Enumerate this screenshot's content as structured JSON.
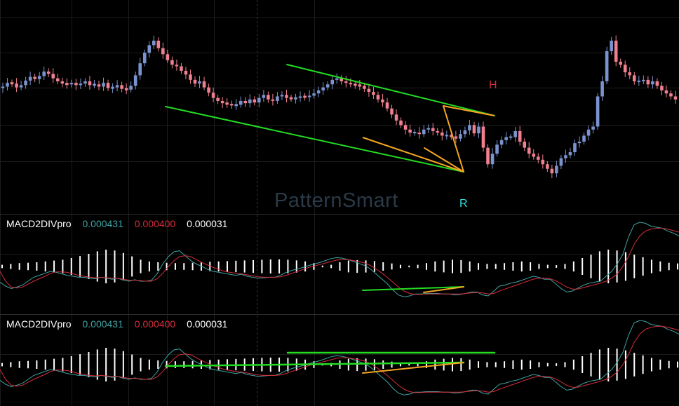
{
  "watermark": "PatternSmart",
  "markers": {
    "h": "H",
    "r": "R"
  },
  "colors": {
    "background": "#000000",
    "bull_candle": "#7a93cf",
    "bear_candle": "#f07f8f",
    "channel_line": "#22dd22",
    "zigzag_line": "#f5a623",
    "macd_line": "#3fa3a3",
    "signal_line": "#d62d3a",
    "histogram": "#ffffff",
    "h_marker": "#d62d3a",
    "r_marker": "#33dddd",
    "watermark": "#2a3a48"
  },
  "indicators": [
    {
      "name": "MACD2DIVpro",
      "macd": "0.000431",
      "signal": "0.000400",
      "hist": "0.000031"
    },
    {
      "name": "MACD2DIVpro",
      "macd": "0.000431",
      "signal": "0.000400",
      "hist": "0.000031"
    }
  ],
  "chart_data": [
    {
      "type": "candlestick",
      "title": "",
      "grid": true,
      "closes": [
        0.565,
        0.59,
        0.585,
        0.56,
        0.575,
        0.605,
        0.63,
        0.615,
        0.635,
        0.665,
        0.65,
        0.62,
        0.6,
        0.585,
        0.58,
        0.59,
        0.575,
        0.585,
        0.6,
        0.575,
        0.58,
        0.565,
        0.59,
        0.555,
        0.56,
        0.575,
        0.55,
        0.545,
        0.57,
        0.64,
        0.72,
        0.79,
        0.84,
        0.87,
        0.82,
        0.78,
        0.74,
        0.71,
        0.7,
        0.67,
        0.645,
        0.61,
        0.585,
        0.6,
        0.56,
        0.525,
        0.49,
        0.47,
        0.455,
        0.45,
        0.44,
        0.445,
        0.47,
        0.455,
        0.48,
        0.46,
        0.49,
        0.51,
        0.48,
        0.47,
        0.5,
        0.51,
        0.49,
        0.485,
        0.49,
        0.5,
        0.495,
        0.505,
        0.52,
        0.54,
        0.56,
        0.58,
        0.61,
        0.62,
        0.6,
        0.59,
        0.58,
        0.575,
        0.57,
        0.55,
        0.53,
        0.51,
        0.48,
        0.46,
        0.42,
        0.38,
        0.34,
        0.31,
        0.28,
        0.26,
        0.26,
        0.25,
        0.28,
        0.29,
        0.27,
        0.26,
        0.24,
        0.24,
        0.235,
        0.22,
        0.25,
        0.275,
        0.31,
        0.255,
        0.3,
        0.16,
        0.05,
        0.12,
        0.18,
        0.21,
        0.23,
        0.23,
        0.27,
        0.2,
        0.16,
        0.12,
        0.1,
        0.08,
        0.05,
        0.02,
        -0.01,
        0.04,
        0.09,
        0.11,
        0.13,
        0.19,
        0.2,
        0.24,
        0.28,
        0.3,
        0.5,
        0.6,
        0.8,
        0.87,
        0.73,
        0.71,
        0.66,
        0.64,
        0.6,
        0.6,
        0.61,
        0.58,
        0.6,
        0.57,
        0.54,
        0.52,
        0.5,
        0.48
      ]
    },
    {
      "type": "line",
      "title": "MACD2DIVpro",
      "series": [
        {
          "name": "0.000431",
          "values": [
            -0.32,
            -0.4,
            -0.45,
            -0.42,
            -0.38,
            -0.3,
            -0.22,
            -0.18,
            -0.14,
            -0.1,
            -0.12,
            -0.15,
            -0.18,
            -0.2,
            -0.22,
            -0.22,
            -0.24,
            -0.25,
            -0.22,
            -0.24,
            -0.26,
            -0.24,
            -0.28,
            -0.3,
            -0.27,
            -0.3,
            -0.3,
            -0.28,
            -0.15,
            0.05,
            0.2,
            0.3,
            0.32,
            0.22,
            0.12,
            0.05,
            0.0,
            -0.06,
            -0.1,
            -0.12,
            -0.14,
            -0.16,
            -0.18,
            -0.16,
            -0.2,
            -0.22,
            -0.24,
            -0.23,
            -0.22,
            -0.22,
            -0.18,
            -0.12,
            -0.08,
            -0.05,
            -0.02,
            0.02,
            0.05,
            0.08,
            0.12,
            0.16,
            0.18,
            0.17,
            0.14,
            0.1,
            0.06,
            0.02,
            -0.05,
            -0.15,
            -0.25,
            -0.35,
            -0.48,
            -0.58,
            -0.62,
            -0.6,
            -0.56,
            -0.56,
            -0.55,
            -0.55,
            -0.55,
            -0.56,
            -0.56,
            -0.58,
            -0.57,
            -0.55,
            -0.52,
            -0.52,
            -0.58,
            -0.6,
            -0.5,
            -0.4,
            -0.38,
            -0.34,
            -0.32,
            -0.28,
            -0.24,
            -0.2,
            -0.22,
            -0.26,
            -0.26,
            -0.35,
            -0.45,
            -0.52,
            -0.5,
            -0.44,
            -0.38,
            -0.34,
            -0.32,
            -0.3,
            -0.2,
            -0.1,
            0.05,
            0.25,
            0.6,
            0.85,
            0.9,
            0.88,
            0.82,
            0.8,
            0.78,
            0.72,
            0.68,
            0.62
          ]
        },
        {
          "name": "0.000400",
          "values": [
            -0.1,
            -0.3,
            -0.42,
            -0.44,
            -0.42,
            -0.36,
            -0.3,
            -0.25,
            -0.2,
            -0.14,
            -0.11,
            -0.11,
            -0.12,
            -0.15,
            -0.18,
            -0.2,
            -0.22,
            -0.23,
            -0.22,
            -0.23,
            -0.24,
            -0.24,
            -0.26,
            -0.28,
            -0.28,
            -0.29,
            -0.3,
            -0.3,
            -0.25,
            -0.14,
            0.0,
            0.12,
            0.2,
            0.22,
            0.2,
            0.14,
            0.08,
            0.03,
            -0.02,
            -0.06,
            -0.1,
            -0.12,
            -0.14,
            -0.15,
            -0.17,
            -0.19,
            -0.21,
            -0.22,
            -0.22,
            -0.22,
            -0.21,
            -0.18,
            -0.14,
            -0.1,
            -0.06,
            -0.02,
            0.01,
            0.04,
            0.07,
            0.1,
            0.13,
            0.14,
            0.14,
            0.12,
            0.1,
            0.07,
            0.02,
            -0.05,
            -0.13,
            -0.22,
            -0.32,
            -0.42,
            -0.5,
            -0.55,
            -0.57,
            -0.57,
            -0.56,
            -0.56,
            -0.56,
            -0.56,
            -0.56,
            -0.56,
            -0.56,
            -0.55,
            -0.54,
            -0.53,
            -0.54,
            -0.56,
            -0.55,
            -0.5,
            -0.46,
            -0.42,
            -0.38,
            -0.34,
            -0.3,
            -0.26,
            -0.24,
            -0.24,
            -0.25,
            -0.29,
            -0.35,
            -0.42,
            -0.46,
            -0.46,
            -0.43,
            -0.4,
            -0.37,
            -0.34,
            -0.3,
            -0.24,
            -0.15,
            0.0,
            0.2,
            0.45,
            0.62,
            0.72,
            0.76,
            0.78,
            0.78,
            0.76,
            0.73,
            0.7
          ]
        }
      ],
      "histogram": [
        0.1,
        0.15,
        0.2,
        0.22,
        0.25,
        0.3,
        0.35,
        0.4,
        0.5,
        0.62,
        0.75,
        0.9,
        1.0,
        0.95,
        0.8,
        0.6,
        0.4,
        0.3,
        0.25,
        0.22,
        0.2,
        0.2,
        0.22,
        0.25,
        0.28,
        0.3,
        0.32,
        0.34,
        0.36,
        0.38,
        0.4,
        0.42,
        0.42,
        0.4,
        0.36,
        0.3,
        0.2,
        0.05,
        -0.1,
        -0.25,
        -0.35,
        -0.38,
        -0.36,
        -0.32,
        -0.25,
        -0.18,
        -0.1,
        0.0,
        0.1,
        0.2,
        0.3,
        0.35,
        0.4,
        0.38,
        0.3,
        0.2,
        0.15,
        0.15,
        0.2,
        0.25,
        0.3,
        0.25,
        0.15,
        0.1,
        0.08,
        0.15,
        0.3,
        0.5,
        0.7,
        0.9,
        1.0,
        0.95,
        0.85,
        0.7,
        0.55,
        0.4,
        0.3,
        0.22,
        0.18
      ],
      "ylim": [
        -1,
        1
      ]
    },
    {
      "type": "line",
      "title": "MACD2DIVpro",
      "series": [
        {
          "name": "0.000431",
          "values": [
            -0.32,
            -0.4,
            -0.45,
            -0.42,
            -0.38,
            -0.3,
            -0.22,
            -0.18,
            -0.14,
            -0.1,
            -0.12,
            -0.15,
            -0.18,
            -0.2,
            -0.22,
            -0.22,
            -0.24,
            -0.25,
            -0.22,
            -0.24,
            -0.26,
            -0.24,
            -0.28,
            -0.3,
            -0.27,
            -0.3,
            -0.3,
            -0.28,
            -0.15,
            0.05,
            0.2,
            0.3,
            0.32,
            0.22,
            0.12,
            0.05,
            0.0,
            -0.06,
            -0.1,
            -0.12,
            -0.14,
            -0.16,
            -0.18,
            -0.16,
            -0.2,
            -0.22,
            -0.24,
            -0.23,
            -0.22,
            -0.22,
            -0.18,
            -0.12,
            -0.08,
            -0.05,
            -0.02,
            0.02,
            0.05,
            0.08,
            0.12,
            0.16,
            0.18,
            0.17,
            0.14,
            0.1,
            0.06,
            0.02,
            -0.05,
            -0.15,
            -0.25,
            -0.35,
            -0.48,
            -0.58,
            -0.62,
            -0.6,
            -0.56,
            -0.56,
            -0.55,
            -0.55,
            -0.55,
            -0.56,
            -0.56,
            -0.58,
            -0.57,
            -0.55,
            -0.52,
            -0.52,
            -0.58,
            -0.6,
            -0.5,
            -0.4,
            -0.38,
            -0.34,
            -0.32,
            -0.28,
            -0.24,
            -0.2,
            -0.22,
            -0.26,
            -0.26,
            -0.35,
            -0.45,
            -0.52,
            -0.5,
            -0.44,
            -0.38,
            -0.34,
            -0.32,
            -0.3,
            -0.2,
            -0.1,
            0.05,
            0.25,
            0.6,
            0.85,
            0.9,
            0.88,
            0.82,
            0.8,
            0.78,
            0.72,
            0.68,
            0.62
          ]
        },
        {
          "name": "0.000400",
          "values": [
            -0.1,
            -0.3,
            -0.42,
            -0.44,
            -0.42,
            -0.36,
            -0.3,
            -0.25,
            -0.2,
            -0.14,
            -0.11,
            -0.11,
            -0.12,
            -0.15,
            -0.18,
            -0.2,
            -0.22,
            -0.23,
            -0.22,
            -0.23,
            -0.24,
            -0.24,
            -0.26,
            -0.28,
            -0.28,
            -0.29,
            -0.3,
            -0.3,
            -0.25,
            -0.14,
            0.0,
            0.12,
            0.2,
            0.22,
            0.2,
            0.14,
            0.08,
            0.03,
            -0.02,
            -0.06,
            -0.1,
            -0.12,
            -0.14,
            -0.15,
            -0.17,
            -0.19,
            -0.21,
            -0.22,
            -0.22,
            -0.22,
            -0.21,
            -0.18,
            -0.14,
            -0.1,
            -0.06,
            -0.02,
            0.01,
            0.04,
            0.07,
            0.1,
            0.13,
            0.14,
            0.14,
            0.12,
            0.1,
            0.07,
            0.02,
            -0.05,
            -0.13,
            -0.22,
            -0.32,
            -0.42,
            -0.5,
            -0.55,
            -0.57,
            -0.57,
            -0.56,
            -0.56,
            -0.56,
            -0.56,
            -0.56,
            -0.56,
            -0.56,
            -0.55,
            -0.54,
            -0.53,
            -0.54,
            -0.56,
            -0.55,
            -0.5,
            -0.46,
            -0.42,
            -0.38,
            -0.34,
            -0.3,
            -0.26,
            -0.24,
            -0.24,
            -0.25,
            -0.29,
            -0.35,
            -0.42,
            -0.46,
            -0.46,
            -0.43,
            -0.4,
            -0.37,
            -0.34,
            -0.3,
            -0.24,
            -0.15,
            0.0,
            0.2,
            0.45,
            0.62,
            0.72,
            0.76,
            0.78,
            0.78,
            0.76,
            0.73,
            0.7
          ]
        }
      ],
      "histogram": [
        0.1,
        0.15,
        0.2,
        0.22,
        0.25,
        0.3,
        0.35,
        0.4,
        0.5,
        0.62,
        0.75,
        0.9,
        1.0,
        0.95,
        0.8,
        0.6,
        0.4,
        0.3,
        0.25,
        0.22,
        0.2,
        0.2,
        0.22,
        0.25,
        0.28,
        0.3,
        0.32,
        0.34,
        0.36,
        0.38,
        0.4,
        0.42,
        0.42,
        0.4,
        0.36,
        0.3,
        0.2,
        0.05,
        -0.1,
        -0.25,
        -0.35,
        -0.38,
        -0.36,
        -0.32,
        -0.25,
        -0.18,
        -0.1,
        0.0,
        0.1,
        0.2,
        0.3,
        0.35,
        0.4,
        0.38,
        0.3,
        0.2,
        0.15,
        0.15,
        0.2,
        0.25,
        0.3,
        0.25,
        0.15,
        0.1,
        0.08,
        0.15,
        0.3,
        0.5,
        0.7,
        0.9,
        1.0,
        0.95,
        0.85,
        0.7,
        0.55,
        0.4,
        0.3,
        0.22,
        0.18
      ],
      "ylim": [
        -1,
        1
      ]
    }
  ]
}
